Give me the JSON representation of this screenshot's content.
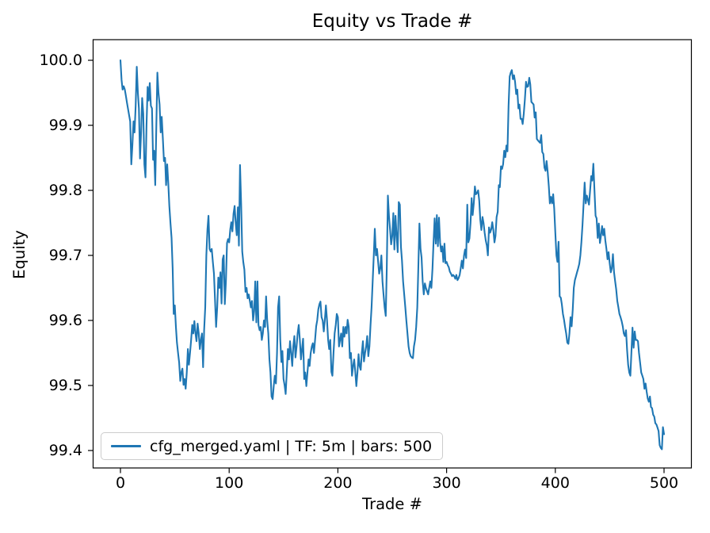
{
  "chart_data": {
    "type": "line",
    "title": "Equity vs Trade #",
    "xlabel": "Trade #",
    "ylabel": "Equity",
    "x_ticks": [
      0,
      100,
      200,
      300,
      400,
      500
    ],
    "y_ticks": [
      "100.0",
      "99.9",
      "99.8",
      "99.7",
      "99.6",
      "99.5",
      "99.4"
    ],
    "xlim": [
      -25,
      525
    ],
    "ylim": [
      99.372,
      100.032
    ],
    "grid": false,
    "background": "#ffffff",
    "axis_color": "#000000",
    "legend": {
      "position": "lower left",
      "entries": [
        {
          "label": "cfg_merged.yaml | TF: 5m | bars: 500",
          "color": "#1f77b4"
        }
      ]
    },
    "series": [
      {
        "name": "cfg_merged.yaml | TF: 5m | bars: 500",
        "color": "#1f77b4",
        "x_start": 0,
        "x_step": 1,
        "y": [
          100.0,
          99.97,
          99.955,
          99.96,
          99.955,
          99.945,
          99.935,
          99.925,
          99.915,
          99.906,
          99.84,
          99.87,
          99.906,
          99.889,
          99.93,
          99.99,
          99.95,
          99.926,
          99.849,
          99.89,
          99.942,
          99.918,
          99.84,
          99.82,
          99.9,
          99.959,
          99.938,
          99.965,
          99.93,
          99.926,
          99.847,
          99.861,
          99.808,
          99.9,
          99.981,
          99.95,
          99.932,
          99.889,
          99.913,
          99.88,
          99.845,
          99.85,
          99.808,
          99.84,
          99.81,
          99.776,
          99.75,
          99.727,
          99.68,
          99.61,
          99.623,
          99.59,
          99.566,
          99.55,
          99.535,
          99.507,
          99.52,
          99.526,
          99.501,
          99.51,
          99.495,
          99.52,
          99.556,
          99.532,
          99.55,
          99.57,
          99.593,
          99.58,
          99.599,
          99.58,
          99.568,
          99.595,
          99.58,
          99.556,
          99.57,
          99.58,
          99.528,
          99.585,
          99.62,
          99.7,
          99.74,
          99.761,
          99.71,
          99.706,
          99.71,
          99.69,
          99.672,
          99.63,
          99.59,
          99.62,
          99.666,
          99.65,
          99.674,
          99.626,
          99.694,
          99.7,
          99.625,
          99.66,
          99.719,
          99.725,
          99.72,
          99.74,
          99.751,
          99.737,
          99.764,
          99.776,
          99.75,
          99.731,
          99.774,
          99.715,
          99.839,
          99.78,
          99.706,
          99.69,
          99.678,
          99.644,
          99.65,
          99.634,
          99.64,
          99.63,
          99.62,
          99.63,
          99.6,
          99.615,
          99.66,
          99.597,
          99.66,
          99.593,
          99.585,
          99.59,
          99.57,
          99.58,
          99.6,
          99.59,
          99.637,
          99.6,
          99.58,
          99.54,
          99.52,
          99.483,
          99.479,
          99.5,
          99.515,
          99.503,
          99.55,
          99.62,
          99.637,
          99.57,
          99.536,
          99.553,
          99.51,
          99.5,
          99.487,
          99.52,
          99.556,
          99.54,
          99.568,
          99.55,
          99.53,
          99.56,
          99.576,
          99.543,
          99.56,
          99.58,
          99.593,
          99.57,
          99.54,
          99.555,
          99.572,
          99.51,
          99.52,
          99.499,
          99.52,
          99.54,
          99.53,
          99.55,
          99.56,
          99.565,
          99.55,
          99.57,
          99.591,
          99.6,
          99.617,
          99.625,
          99.629,
          99.605,
          99.6,
          99.583,
          99.6,
          99.623,
          99.6,
          99.57,
          99.556,
          99.57,
          99.521,
          99.515,
          99.55,
          99.58,
          99.593,
          99.61,
          99.605,
          99.56,
          99.57,
          99.58,
          99.56,
          99.59,
          99.575,
          99.59,
          99.58,
          99.601,
          99.59,
          99.542,
          99.55,
          99.515,
          99.53,
          99.54,
          99.52,
          99.499,
          99.52,
          99.548,
          99.53,
          99.524,
          99.55,
          99.568,
          99.537,
          99.55,
          99.56,
          99.576,
          99.545,
          99.56,
          99.593,
          99.62,
          99.66,
          99.7,
          99.741,
          99.7,
          99.71,
          99.69,
          99.672,
          99.68,
          99.7,
          99.66,
          99.64,
          99.62,
          99.607,
          99.68,
          99.792,
          99.76,
          99.739,
          99.717,
          99.73,
          99.765,
          99.709,
          99.761,
          99.73,
          99.705,
          99.782,
          99.778,
          99.713,
          99.692,
          99.66,
          99.64,
          99.62,
          99.6,
          99.58,
          99.56,
          99.55,
          99.545,
          99.543,
          99.542,
          99.56,
          99.57,
          99.59,
          99.62,
          99.68,
          99.749,
          99.71,
          99.697,
          99.66,
          99.64,
          99.657,
          99.65,
          99.645,
          99.64,
          99.65,
          99.66,
          99.65,
          99.68,
          99.72,
          99.757,
          99.718,
          99.762,
          99.714,
          99.758,
          99.72,
          99.706,
          99.714,
          99.69,
          99.718,
          99.688,
          99.69,
          99.685,
          99.682,
          99.675,
          99.672,
          99.668,
          99.67,
          99.668,
          99.664,
          99.67,
          99.662,
          99.665,
          99.67,
          99.68,
          99.692,
          99.68,
          99.7,
          99.709,
          99.696,
          99.778,
          99.72,
          99.726,
          99.75,
          99.788,
          99.762,
          99.78,
          99.806,
          99.794,
          99.796,
          99.8,
          99.784,
          99.755,
          99.739,
          99.759,
          99.75,
          99.735,
          99.723,
          99.715,
          99.7,
          99.743,
          99.735,
          99.74,
          99.751,
          99.739,
          99.72,
          99.73,
          99.759,
          99.767,
          99.808,
          99.805,
          99.837,
          99.833,
          99.84,
          99.861,
          99.851,
          99.869,
          99.86,
          99.93,
          99.975,
          99.981,
          99.985,
          99.971,
          99.977,
          99.967,
          99.948,
          99.955,
          99.926,
          99.932,
          99.91,
          99.91,
          99.902,
          99.918,
          99.94,
          99.967,
          99.959,
          99.96,
          99.973,
          99.963,
          99.936,
          99.934,
          99.932,
          99.912,
          99.92,
          99.879,
          99.877,
          99.875,
          99.873,
          99.885,
          99.859,
          99.856,
          99.835,
          99.83,
          99.845,
          99.828,
          99.806,
          99.78,
          99.79,
          99.78,
          99.794,
          99.772,
          99.735,
          99.7,
          99.69,
          99.721,
          99.637,
          99.635,
          99.625,
          99.61,
          99.601,
          99.59,
          99.58,
          99.566,
          99.564,
          99.58,
          99.605,
          99.591,
          99.617,
          99.65,
          99.662,
          99.668,
          99.674,
          99.68,
          99.687,
          99.7,
          99.72,
          99.747,
          99.78,
          99.812,
          99.78,
          99.792,
          99.785,
          99.778,
          99.8,
          99.822,
          99.815,
          99.841,
          99.8,
          99.761,
          99.757,
          99.727,
          99.749,
          99.719,
          99.73,
          99.745,
          99.731,
          99.741,
          99.723,
          99.71,
          99.694,
          99.705,
          99.688,
          99.674,
          99.68,
          99.702,
          99.674,
          99.66,
          99.648,
          99.63,
          99.62,
          99.61,
          99.605,
          99.599,
          99.591,
          99.58,
          99.576,
          99.585,
          99.554,
          99.532,
          99.52,
          99.515,
          99.55,
          99.589,
          99.558,
          99.583,
          99.57,
          99.57,
          99.568,
          99.55,
          99.535,
          99.52,
          99.515,
          99.51,
          99.495,
          99.503,
          99.491,
          99.48,
          99.475,
          99.483,
          99.467,
          99.465,
          99.455,
          99.452,
          99.442,
          99.44,
          99.435,
          99.43,
          99.408,
          99.404,
          99.402,
          99.436,
          99.425
        ]
      }
    ]
  }
}
